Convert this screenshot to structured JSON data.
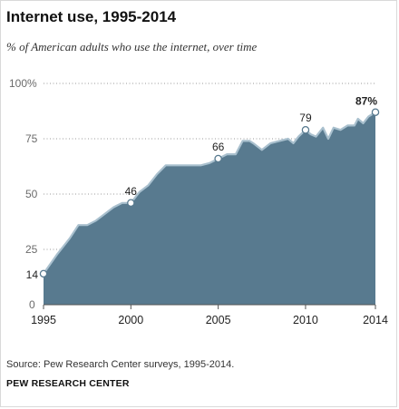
{
  "header": {
    "title": "Internet use, 1995-2014",
    "subtitle": "% of American adults who use the internet, over time"
  },
  "footer": {
    "source": "Source: Pew Research Center surveys, 1995-2014.",
    "credit": "PEW RESEARCH CENTER"
  },
  "chart_data": {
    "type": "area",
    "title": "Internet use, 1995-2014",
    "subtitle": "% of American adults who use the internet, over time",
    "xlabel": "",
    "ylabel": "",
    "xlim": [
      1995,
      2014
    ],
    "ylim": [
      0,
      100
    ],
    "y_ticks": [
      "0",
      "25",
      "50",
      "75",
      "100%"
    ],
    "y_tick_values": [
      0,
      25,
      50,
      75,
      100
    ],
    "x_ticks": [
      "1995",
      "2000",
      "2005",
      "2010",
      "2014"
    ],
    "x_tick_values": [
      1995,
      2000,
      2005,
      2010,
      2014
    ],
    "grid": "dotted horizontal",
    "fill_color": "#587a8f",
    "line_color": "#a9c0ce",
    "series": [
      {
        "x": [
          1995.0,
          1995.8,
          1996.5,
          1997.0,
          1997.5,
          1998.0,
          1998.5,
          1999.0,
          1999.5,
          2000.0,
          2000.5,
          2001.0,
          2001.5,
          2002.0,
          2002.5,
          2003.0,
          2003.5,
          2004.0,
          2004.5,
          2005.0,
          2005.5,
          2006.0,
          2006.4,
          2006.8,
          2007.0,
          2007.5,
          2008.0,
          2008.5,
          2009.0,
          2009.3,
          2009.6,
          2010.0,
          2010.3,
          2010.6,
          2011.0,
          2011.3,
          2011.6,
          2012.0,
          2012.4,
          2012.8,
          2013.0,
          2013.3,
          2013.6,
          2014.0
        ],
        "values": [
          14,
          23,
          30,
          36,
          36,
          38,
          41,
          44,
          46,
          46,
          51,
          54,
          59,
          63,
          63,
          63,
          63,
          63,
          64,
          66,
          68,
          68,
          74,
          74,
          73,
          70,
          73,
          74,
          75,
          73,
          76,
          79,
          77,
          76,
          80,
          75,
          80,
          79,
          81,
          81,
          84,
          82,
          85,
          87
        ]
      }
    ],
    "labeled_points": [
      {
        "x": 1995,
        "y": 14,
        "label": "14"
      },
      {
        "x": 2000,
        "y": 46,
        "label": "46"
      },
      {
        "x": 2005,
        "y": 66,
        "label": "66"
      },
      {
        "x": 2010,
        "y": 79,
        "label": "79"
      },
      {
        "x": 2014,
        "y": 87,
        "label": "87%"
      }
    ]
  }
}
